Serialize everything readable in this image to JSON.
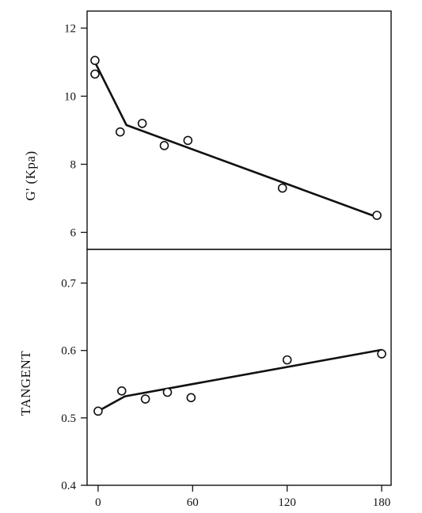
{
  "chart_data": [
    {
      "type": "scatter",
      "ylabel": "G' (Kpa)",
      "xlabel": "",
      "ylim": [
        5.5,
        12.5
      ],
      "xlim": [
        -7,
        186
      ],
      "yticks": [
        "6",
        "8",
        "10",
        "12"
      ],
      "series": [
        {
          "kind": "points",
          "x": [
            -2,
            -2,
            14,
            28,
            42,
            57,
            117,
            177
          ],
          "y": [
            11.05,
            10.65,
            8.95,
            9.2,
            8.55,
            8.7,
            7.3,
            6.5
          ]
        },
        {
          "kind": "fit",
          "x": [
            -2,
            18,
            177
          ],
          "y": [
            11.0,
            9.15,
            6.45
          ]
        }
      ]
    },
    {
      "type": "scatter",
      "ylabel": "TANGENT",
      "xlabel": "",
      "ylim": [
        0.4,
        0.75
      ],
      "xlim": [
        -7,
        186
      ],
      "yticks": [
        "0.4",
        "0.5",
        "0.6",
        "0.7"
      ],
      "xticks": [
        "0",
        "60",
        "120",
        "180"
      ],
      "series": [
        {
          "kind": "points",
          "x": [
            0,
            15,
            30,
            44,
            59,
            120,
            180
          ],
          "y": [
            0.51,
            0.54,
            0.528,
            0.538,
            0.53,
            0.586,
            0.595
          ]
        },
        {
          "kind": "fit",
          "x": [
            0,
            17,
            180
          ],
          "y": [
            0.51,
            0.532,
            0.601
          ]
        }
      ]
    }
  ],
  "colors": {
    "ink": "#111111",
    "background": "#ffffff"
  }
}
